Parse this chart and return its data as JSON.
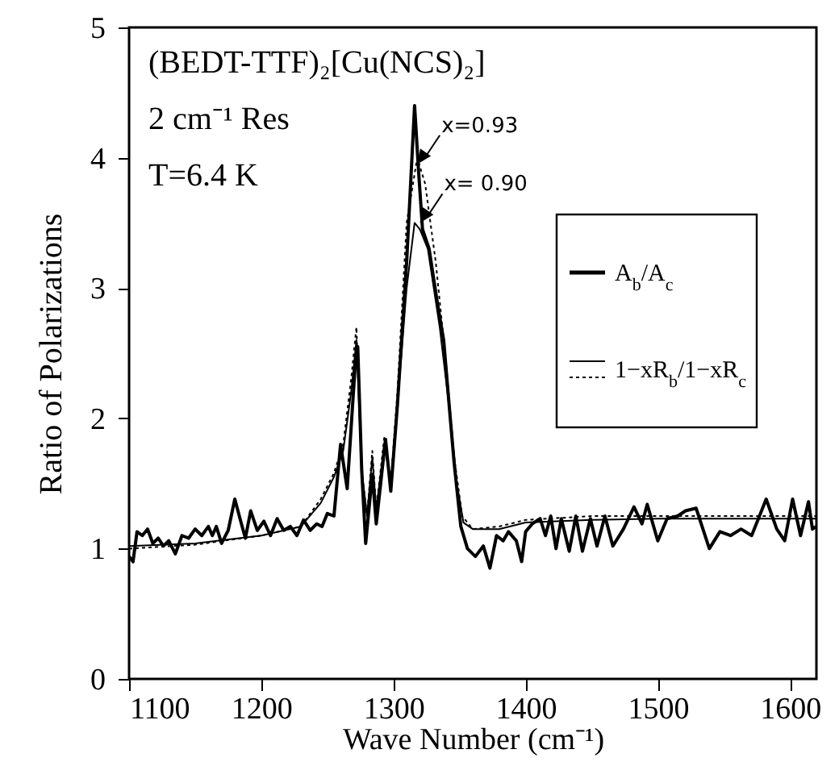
{
  "chart_data": {
    "type": "line",
    "title": "(BEDT-TTF)₂[Cu(NCS)₂]",
    "subtitle": "2 cm⁻¹ Res",
    "xlabel": "Wave Number (cm⁻¹)",
    "ylabel": "Ratio of Polarizations",
    "annotations": [
      "T=6.4 K",
      {
        "text": "x=0.93",
        "x": 1318,
        "y": 3.95
      },
      {
        "text": "x= 0.90",
        "x": 1320,
        "y": 3.5
      }
    ],
    "xlim": [
      1100,
      1620
    ],
    "xticks": [
      1100,
      1200,
      1300,
      1400,
      1500,
      1600
    ],
    "ylim": [
      0,
      5
    ],
    "yticks": [
      0,
      1,
      2,
      3,
      4,
      5
    ],
    "grid": false,
    "legend": "right",
    "line_style": "solid",
    "series": [
      {
        "name": "A$_{b}$/A$_{c}$",
        "color": "#000000",
        "x": [
          1100,
          1103,
          1106,
          1110,
          1114,
          1118,
          1122,
          1126,
          1130,
          1135,
          1140,
          1145,
          1150,
          1155,
          1160,
          1163,
          1166,
          1170,
          1175,
          1180,
          1185,
          1188,
          1192,
          1197,
          1202,
          1207,
          1212,
          1217,
          1222,
          1227,
          1232,
          1237,
          1242,
          1246,
          1250,
          1255,
          1260,
          1265,
          1271,
          1273,
          1276,
          1279,
          1284,
          1287,
          1294,
          1298,
          1303,
          1310,
          1316,
          1319,
          1322,
          1327,
          1333,
          1338,
          1343,
          1346,
          1351,
          1356,
          1362,
          1368,
          1373,
          1378,
          1383,
          1387,
          1393,
          1397,
          1400,
          1405,
          1411,
          1415,
          1419,
          1423,
          1427,
          1433,
          1438,
          1443,
          1449,
          1454,
          1460,
          1466,
          1474,
          1482,
          1488,
          1492,
          1500,
          1507,
          1515,
          1521,
          1529,
          1539,
          1547,
          1555,
          1563,
          1571,
          1582,
          1590,
          1596,
          1602,
          1608,
          1614,
          1617,
          1620
        ],
        "values": [
          0.94,
          0.9,
          1.13,
          1.1,
          1.15,
          1.04,
          1.08,
          1.02,
          1.06,
          0.96,
          1.1,
          1.08,
          1.15,
          1.1,
          1.17,
          1.1,
          1.17,
          1.04,
          1.14,
          1.38,
          1.19,
          1.08,
          1.29,
          1.14,
          1.21,
          1.1,
          1.23,
          1.14,
          1.17,
          1.1,
          1.22,
          1.14,
          1.19,
          1.17,
          1.27,
          1.25,
          1.8,
          1.46,
          2.4,
          2.55,
          1.6,
          1.04,
          1.57,
          1.19,
          1.84,
          1.44,
          2.1,
          3.2,
          4.4,
          3.9,
          3.45,
          3.3,
          2.9,
          2.6,
          2.0,
          1.65,
          1.17,
          1.0,
          0.94,
          1.02,
          0.85,
          1.1,
          1.06,
          1.13,
          1.06,
          0.9,
          1.13,
          1.19,
          1.23,
          1.1,
          1.25,
          1.0,
          1.23,
          0.98,
          1.25,
          0.98,
          1.23,
          1.02,
          1.25,
          1.02,
          1.15,
          1.32,
          1.19,
          1.34,
          1.06,
          1.23,
          1.25,
          1.29,
          1.31,
          1.0,
          1.13,
          1.1,
          1.15,
          1.1,
          1.38,
          1.15,
          1.06,
          1.38,
          1.1,
          1.36,
          1.15,
          1.17
        ]
      },
      {
        "name": "1−xR$_{b}$/1−xR$_{c}$",
        "color": "#000000",
        "x": [
          1100,
          1150,
          1200,
          1230,
          1245,
          1255,
          1262,
          1268,
          1272,
          1276,
          1280,
          1284,
          1287,
          1293,
          1298,
          1303,
          1310,
          1316,
          1320,
          1326,
          1335,
          1342,
          1348,
          1353,
          1360,
          1380,
          1400,
          1450,
          1500,
          1620
        ],
        "values": [
          1.02,
          1.04,
          1.1,
          1.17,
          1.35,
          1.55,
          1.75,
          2.2,
          2.6,
          1.6,
          1.25,
          1.7,
          1.3,
          1.8,
          1.5,
          2.1,
          3.0,
          3.5,
          3.45,
          3.3,
          2.7,
          2.1,
          1.5,
          1.2,
          1.15,
          1.15,
          1.2,
          1.22,
          1.23,
          1.23
        ]
      },
      {
        "color": "#000000",
        "line_style": "dotted",
        "x": [
          1100,
          1150,
          1200,
          1230,
          1245,
          1255,
          1262,
          1268,
          1272,
          1276,
          1280,
          1284,
          1287,
          1293,
          1298,
          1303,
          1310,
          1318,
          1324,
          1332,
          1340,
          1346,
          1352,
          1360,
          1380,
          1400,
          1450,
          1500,
          1620
        ],
        "values": [
          1.0,
          1.03,
          1.1,
          1.17,
          1.38,
          1.58,
          1.8,
          2.3,
          2.7,
          1.6,
          1.25,
          1.75,
          1.3,
          1.85,
          1.5,
          2.2,
          3.5,
          4.0,
          3.8,
          3.2,
          2.4,
          1.7,
          1.25,
          1.15,
          1.17,
          1.22,
          1.25,
          1.25,
          1.25
        ]
      }
    ]
  }
}
